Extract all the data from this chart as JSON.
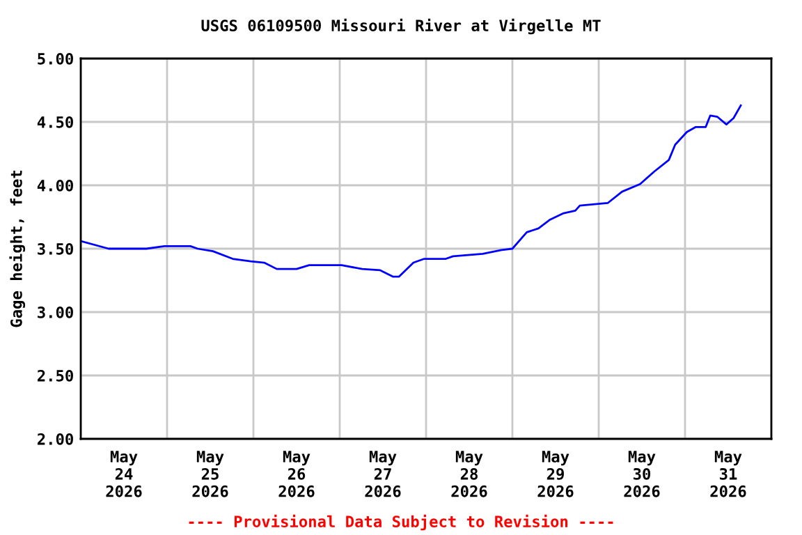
{
  "chart_data": {
    "type": "line",
    "title": "USGS 06109500 Missouri River at Virgelle MT",
    "ylabel": "Gage height, feet",
    "annotations": [
      "---- Provisional Data Subject to Revision ----"
    ],
    "x": [
      "2026-05-24T00:00",
      "2026-05-24T07:45",
      "2026-05-24T18:15",
      "2026-05-24T23:15",
      "2026-05-25T06:30",
      "2026-05-25T08:30",
      "2026-05-25T12:45",
      "2026-05-25T18:15",
      "2026-05-25T23:15",
      "2026-05-26T03:00",
      "2026-05-26T06:30",
      "2026-05-26T12:00",
      "2026-05-26T15:30",
      "2026-05-26T19:30",
      "2026-05-27T00:30",
      "2026-05-27T06:15",
      "2026-05-27T11:15",
      "2026-05-27T14:45",
      "2026-05-27T16:30",
      "2026-05-27T20:30",
      "2026-05-27T23:30",
      "2026-05-28T05:30",
      "2026-05-28T07:30",
      "2026-05-28T15:45",
      "2026-05-28T21:00",
      "2026-05-29T00:00",
      "2026-05-29T04:00",
      "2026-05-29T07:15",
      "2026-05-29T10:30",
      "2026-05-29T14:15",
      "2026-05-29T17:30",
      "2026-05-29T18:45",
      "2026-05-30T02:30",
      "2026-05-30T06:30",
      "2026-05-30T11:30",
      "2026-05-30T15:30",
      "2026-05-30T19:30",
      "2026-05-30T21:15",
      "2026-05-31T00:30",
      "2026-05-31T03:00",
      "2026-05-31T05:45",
      "2026-05-31T07:00",
      "2026-05-31T09:00",
      "2026-05-31T11:30",
      "2026-05-31T13:30",
      "2026-05-31T15:30"
    ],
    "series": [
      {
        "color": "#0000ff",
        "values": [
          3.56,
          3.5,
          3.5,
          3.52,
          3.52,
          3.5,
          3.48,
          3.42,
          3.4,
          3.39,
          3.34,
          3.34,
          3.37,
          3.37,
          3.37,
          3.34,
          3.33,
          3.28,
          3.28,
          3.39,
          3.42,
          3.42,
          3.44,
          3.46,
          3.49,
          3.5,
          3.63,
          3.66,
          3.73,
          3.78,
          3.8,
          3.84,
          3.86,
          3.95,
          4.01,
          4.11,
          4.2,
          4.32,
          4.42,
          4.46,
          4.46,
          4.55,
          4.54,
          4.48,
          4.53,
          4.63
        ]
      }
    ],
    "xlim": [
      "2026-05-24T00:00",
      "2026-06-01T00:00"
    ],
    "xticks": [
      {
        "value": "2026-05-24T00:00",
        "label": null
      },
      {
        "value": "2026-05-24T12:00",
        "label": "May\n24\n2026"
      },
      {
        "value": "2026-05-25T00:00",
        "label": null
      },
      {
        "value": "2026-05-25T12:00",
        "label": "May\n25\n2026"
      },
      {
        "value": "2026-05-26T00:00",
        "label": null
      },
      {
        "value": "2026-05-26T12:00",
        "label": "May\n26\n2026"
      },
      {
        "value": "2026-05-27T00:00",
        "label": null
      },
      {
        "value": "2026-05-27T12:00",
        "label": "May\n27\n2026"
      },
      {
        "value": "2026-05-28T00:00",
        "label": null
      },
      {
        "value": "2026-05-28T12:00",
        "label": "May\n28\n2026"
      },
      {
        "value": "2026-05-29T00:00",
        "label": null
      },
      {
        "value": "2026-05-29T12:00",
        "label": "May\n29\n2026"
      },
      {
        "value": "2026-05-30T00:00",
        "label": null
      },
      {
        "value": "2026-05-30T12:00",
        "label": "May\n30\n2026"
      },
      {
        "value": "2026-05-31T00:00",
        "label": null
      },
      {
        "value": "2026-05-31T12:00",
        "label": "May\n31\n2026"
      },
      {
        "value": "2026-06-01T00:00",
        "label": null
      }
    ],
    "ylim": [
      2,
      5
    ],
    "yticks": [
      {
        "value": 2,
        "label": "2.00"
      },
      {
        "value": 2.5,
        "label": "2.50"
      },
      {
        "value": 3,
        "label": "3.00"
      },
      {
        "value": 3.5,
        "label": "3.50"
      },
      {
        "value": 4,
        "label": "4.00"
      },
      {
        "value": 4.5,
        "label": "4.50"
      },
      {
        "value": 5,
        "label": "5.00"
      }
    ],
    "grid": true,
    "marker": "none",
    "line_style": "solid"
  }
}
